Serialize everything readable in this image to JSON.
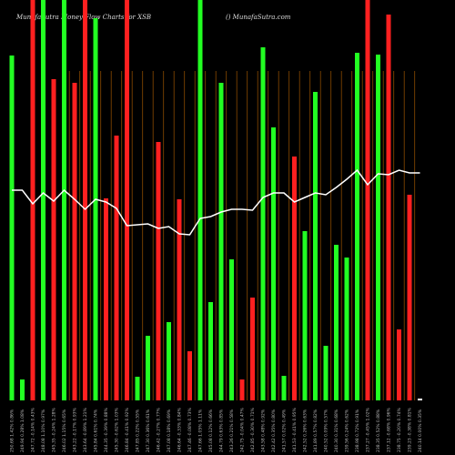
{
  "chart_data": {
    "type": "bar",
    "title": "MunafaSutra Money Flow Charts for XSB",
    "subtitle": "() MunafaSutra.com",
    "categories": [
      "250.68 1.42% 0.86%",
      "249.94 0.28% 1.08%",
      "247.72 -0.14% 0.43%",
      "248.08 1.10% 0.97%",
      "245.35 -0.24% 1.28%",
      "246.02 1.15% 0.65%",
      "243.22 -0.17% 0.93%",
      "243.64 -0.89% 1.21%",
      "245.84 0.61% 0.74%",
      "244.35 -0.39% 0.88%",
      "245.30 -0.62% 1.03%",
      "246.84 -0.41% 0.92%",
      "247.85 0.22% 0.55%",
      "247.30 0.36% 0.61%",
      "246.42 -0.27% 0.77%",
      "247.08 0.18% 0.69%",
      "246.64 -0.33% 0.84%",
      "247.46 -0.08% 0.73%",
      "247.66 1.05% 1.11%",
      "245.08 0.12% 0.66%",
      "244.79 0.63% 0.85%",
      "243.26 0.21% 0.58%",
      "242.75 -0.04% 0.47%",
      "242.85 -0.30% 0.71%",
      "243.58 0.48% 0.92%",
      "242.42 0.35% 0.80%",
      "241.57 0.02% 0.49%",
      "241.53 -0.41% 0.95%",
      "242.52 0.26% 0.63%",
      "241.89 0.57% 0.82%",
      "240.52 0.09% 0.57%",
      "240.30 0.31% 0.68%",
      "239.56 0.24% 0.62%",
      "238.98 0.72% 0.91%",
      "237.27 -0.45% 1.02%",
      "238.35 0.52% 0.88%",
      "237.12 -0.68% 0.96%",
      "238.75 -0.20% 0.74%",
      "239.23 -0.38% 0.81%",
      "240.14 0.00% 0.35%"
    ],
    "values": [
      379,
      23,
      440,
      440,
      353,
      440,
      349,
      440,
      420,
      222,
      291,
      440,
      26,
      71,
      284,
      86,
      221,
      54,
      440,
      108,
      349,
      155,
      23,
      113,
      388,
      300,
      27,
      268,
      186,
      339,
      60,
      171,
      157,
      382,
      440,
      380,
      424,
      78,
      226,
      2
    ],
    "colors": [
      "#22ff22",
      "#22ff22",
      "#ff2020",
      "#22ff22",
      "#ff2020",
      "#22ff22",
      "#ff2020",
      "#ff2020",
      "#22ff22",
      "#ff2020",
      "#ff2020",
      "#ff2020",
      "#22ff22",
      "#22ff22",
      "#ff2020",
      "#22ff22",
      "#ff2020",
      "#ff2020",
      "#22ff22",
      "#22ff22",
      "#22ff22",
      "#22ff22",
      "#ff2020",
      "#ff2020",
      "#22ff22",
      "#22ff22",
      "#22ff22",
      "#ff2020",
      "#22ff22",
      "#22ff22",
      "#22ff22",
      "#22ff22",
      "#22ff22",
      "#22ff22",
      "#ff2020",
      "#22ff22",
      "#ff2020",
      "#ff2020",
      "#ff2020",
      "#ffffff"
    ],
    "line": {
      "color": "#ffffff",
      "values": [
        231,
        231,
        216,
        228,
        219,
        231,
        221,
        210,
        221,
        218,
        211,
        192,
        193,
        194,
        189,
        191,
        183,
        182,
        200,
        202,
        207,
        210,
        210,
        209,
        223,
        228,
        228,
        218,
        223,
        228,
        226,
        234,
        243,
        253,
        237,
        249,
        248,
        253,
        250,
        250
      ]
    },
    "ylim": [
      0,
      440
    ]
  }
}
